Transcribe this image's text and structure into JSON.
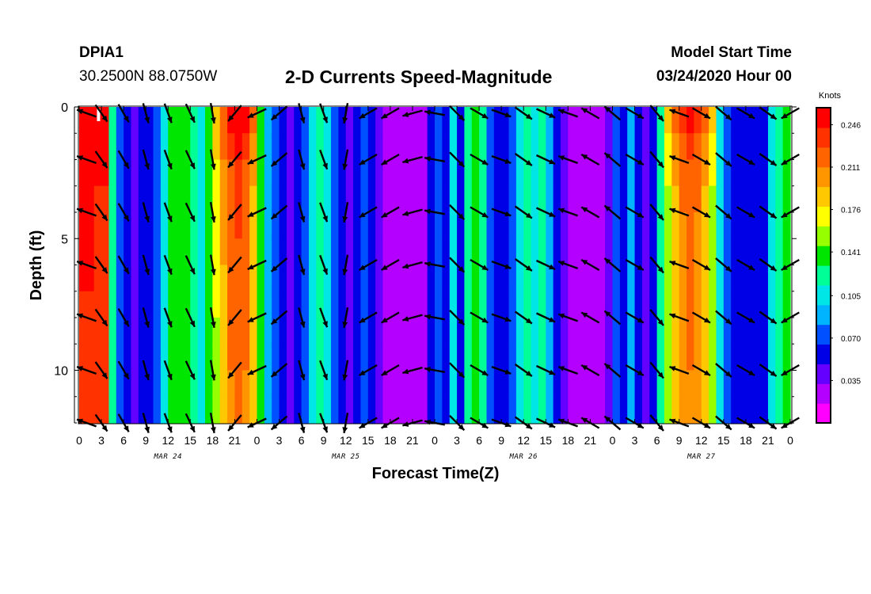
{
  "header": {
    "station": "DPIA1",
    "coords": "30.2500N 88.0750W",
    "title": "2-D Currents Speed-Magnitude",
    "model_start_label": "Model Start Time",
    "model_start_value": "03/24/2020 Hour 00"
  },
  "colors": {
    "palette": [
      "#ff00ff",
      "#b400ff",
      "#6400ff",
      "#0000e6",
      "#0050ff",
      "#00b4ff",
      "#00e6e6",
      "#00ff96",
      "#00e600",
      "#96ff00",
      "#ffff00",
      "#ffc800",
      "#ff9600",
      "#ff6400",
      "#ff3200",
      "#ff0000"
    ],
    "arrow": "#000000",
    "marker": "#ffffff"
  },
  "chart_data": {
    "type": "heatmap",
    "xlabel": "Forecast Time(Z)",
    "ylabel": "Depth (ft)",
    "ylim": [
      0,
      12
    ],
    "y_ticks": [
      0,
      5,
      10
    ],
    "x_tick_labels": [
      "0",
      "3",
      "6",
      "9",
      "12",
      "15",
      "18",
      "21",
      "0",
      "3",
      "6",
      "9",
      "12",
      "15",
      "18",
      "21",
      "0",
      "3",
      "6",
      "9",
      "12",
      "15",
      "18",
      "21",
      "0",
      "3",
      "6",
      "9",
      "12",
      "15",
      "18",
      "21",
      "0"
    ],
    "date_labels": [
      {
        "hour": 12,
        "label": "MAR 24"
      },
      {
        "hour": 36,
        "label": "MAR 25"
      },
      {
        "hour": 60,
        "label": "MAR 26"
      },
      {
        "hour": 84,
        "label": "MAR 27"
      }
    ],
    "x_range_hours": [
      0,
      96
    ],
    "colorbar": {
      "unit": "Knots",
      "min": 0,
      "max": 0.26,
      "ticks": [
        0.246,
        0.211,
        0.176,
        0.141,
        0.105,
        0.07,
        0.035
      ]
    },
    "speed_by_hour": [
      0.24,
      0.24,
      0.23,
      0.23,
      0.12,
      0.07,
      0.05,
      0.04,
      0.05,
      0.06,
      0.08,
      0.11,
      0.13,
      0.14,
      0.13,
      0.12,
      0.11,
      0.13,
      0.16,
      0.19,
      0.21,
      0.22,
      0.21,
      0.18,
      0.13,
      0.09,
      0.07,
      0.05,
      0.04,
      0.05,
      0.08,
      0.11,
      0.12,
      0.1,
      0.07,
      0.05,
      0.04,
      0.06,
      0.08,
      0.06,
      0.04,
      0.03,
      0.03,
      0.02,
      0.02,
      0.02,
      0.03,
      0.05,
      0.08,
      0.05,
      0.1,
      0.05,
      0.12,
      0.14,
      0.12,
      0.08,
      0.05,
      0.06,
      0.08,
      0.1,
      0.12,
      0.1,
      0.12,
      0.09,
      0.06,
      0.04,
      0.03,
      0.02,
      0.02,
      0.02,
      0.02,
      0.04,
      0.07,
      0.05,
      0.09,
      0.05,
      0.04,
      0.05,
      0.12,
      0.15,
      0.18,
      0.2,
      0.21,
      0.2,
      0.18,
      0.15,
      0.11,
      0.08,
      0.06,
      0.05,
      0.05,
      0.05,
      0.06,
      0.1,
      0.12,
      0.14
    ],
    "depth_profile": {
      "surface_extra": 0.04,
      "depth_of_half_extra_ft": 3
    },
    "vectors": {
      "hours": [
        1,
        3,
        6,
        9,
        12,
        15,
        18,
        21,
        24,
        27,
        30,
        33,
        36,
        39,
        42,
        45,
        48,
        51,
        54,
        57,
        60,
        63,
        66,
        69,
        72,
        75,
        78,
        81,
        84,
        87,
        90,
        93,
        96
      ],
      "depths_ft": [
        0,
        2,
        4,
        6,
        8,
        10,
        12
      ],
      "directions_deg": [
        200,
        55,
        60,
        75,
        70,
        65,
        80,
        130,
        155,
        140,
        75,
        70,
        100,
        150,
        150,
        165,
        190,
        45,
        30,
        20,
        35,
        25,
        200,
        210,
        220,
        30,
        50,
        200,
        30,
        40,
        30,
        35,
        150
      ],
      "note": "arrow direction in degrees (0 = pointing right, positive = clockwise on screen)"
    }
  }
}
